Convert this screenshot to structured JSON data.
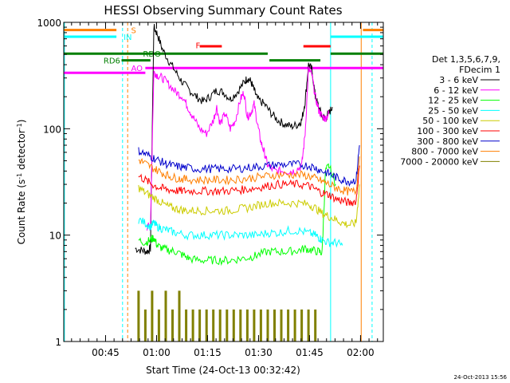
{
  "chart_data": {
    "type": "line",
    "title": "HESSI Observing Summary Count Rates",
    "xlabel": "Start Time (24-Oct-13 00:32:42)",
    "ylabel_main": "Count Rate (s",
    "ylabel_sup": "-1",
    "ylabel_mid": " detector",
    "ylabel_end": ")",
    "yscale": "log",
    "ylim": [
      1,
      1000
    ],
    "xlim": [
      0.0,
      94.0
    ],
    "yticks": [
      {
        "value": 1,
        "label": "1"
      },
      {
        "value": 10,
        "label": "10"
      },
      {
        "value": 100,
        "label": "100"
      },
      {
        "value": 1000,
        "label": "1000"
      }
    ],
    "xticks": [
      {
        "value": 12.3,
        "label": "00:45"
      },
      {
        "value": 27.3,
        "label": "01:00"
      },
      {
        "value": 42.3,
        "label": "01:15"
      },
      {
        "value": 57.3,
        "label": "01:30"
      },
      {
        "value": 72.3,
        "label": "01:45"
      },
      {
        "value": 87.3,
        "label": "02:00"
      }
    ],
    "legend_header": [
      "Det 1,3,5,6,7,9,",
      "FDecim 1"
    ],
    "legend_placement": "right",
    "timestamp": "24-Oct-2013 15:56",
    "flags": [
      {
        "label": "S",
        "color": "#ff7f00",
        "y": 0.976
      },
      {
        "label": "IN",
        "color": "#00ffff",
        "y": 0.955
      },
      {
        "label": "RDO",
        "color": "#007f00",
        "y": 0.902
      },
      {
        "label": "RD6",
        "color": "#007f00",
        "y": 0.881
      },
      {
        "label": "AO",
        "color": "#ff00ff",
        "y": 0.857
      },
      {
        "label": "F",
        "color": "#ff0000",
        "y": 0.929
      }
    ],
    "series": [
      {
        "name": "3 - 6 keV",
        "color": "#000000",
        "x": [
          21,
          23,
          24.5,
          25.5,
          26.5,
          27.5,
          29,
          31,
          33,
          35,
          37,
          39,
          41,
          43,
          45,
          47,
          49,
          51,
          53,
          54,
          55,
          56,
          57,
          59,
          61,
          63,
          65,
          67,
          69,
          70,
          71,
          72,
          73,
          74,
          75,
          76,
          77,
          78,
          79
        ],
        "y": [
          7.5,
          7.2,
          7.0,
          7.5,
          900,
          780,
          560,
          430,
          340,
          270,
          230,
          200,
          180,
          200,
          230,
          220,
          190,
          220,
          270,
          300,
          280,
          230,
          190,
          170,
          140,
          120,
          110,
          105,
          110,
          120,
          180,
          400,
          360,
          200,
          160,
          130,
          125,
          140,
          160
        ]
      },
      {
        "name": "6 - 12 keV",
        "color": "#ff00ff",
        "x": [
          24.5,
          25.5,
          26.5,
          27.5,
          29,
          31,
          33,
          35,
          36.5,
          38,
          40,
          42,
          44,
          45,
          46,
          47.5,
          49,
          50.5,
          52,
          53,
          54,
          55,
          56,
          57,
          58,
          59,
          60,
          62,
          64,
          66,
          68,
          70,
          71,
          72,
          73,
          74,
          75,
          76,
          77,
          78
        ],
        "y": [
          12,
          12,
          340,
          320,
          300,
          260,
          220,
          200,
          160,
          130,
          100,
          90,
          120,
          160,
          110,
          140,
          100,
          120,
          190,
          220,
          130,
          140,
          170,
          110,
          75,
          60,
          45,
          40,
          40,
          40,
          40,
          45,
          90,
          360,
          320,
          200,
          150,
          130,
          125,
          140
        ]
      },
      {
        "name": "12 - 25 keV",
        "color": "#00ff00",
        "x": [
          22,
          24,
          25.5,
          26.5,
          27.5,
          29,
          31,
          33,
          35,
          37,
          40,
          43,
          46,
          49,
          52,
          55,
          57,
          60,
          63,
          66,
          69,
          71,
          73,
          75,
          76,
          77,
          78,
          80
        ],
        "y": [
          9,
          8.5,
          9,
          9.5,
          8,
          7.5,
          7.2,
          7.0,
          6.5,
          6.0,
          5.8,
          5.8,
          5.8,
          5.8,
          6.0,
          6.2,
          6.5,
          7.0,
          7.0,
          7.0,
          7.2,
          7.5,
          7.2,
          7.0,
          6.8,
          40,
          45,
          30
        ]
      },
      {
        "name": "25 - 50 keV",
        "color": "#00ffff",
        "x": [
          22,
          24,
          25.5,
          26.5,
          27.5,
          29,
          31,
          33,
          36,
          39,
          42,
          45,
          48,
          51,
          54,
          57,
          60,
          63,
          66,
          69,
          72,
          74,
          75,
          76,
          78,
          80,
          82
        ],
        "y": [
          14,
          13,
          12,
          13,
          12,
          11.5,
          11,
          10.5,
          10,
          10,
          10,
          10,
          10,
          10,
          10,
          10,
          10.5,
          10.5,
          11,
          11,
          10.5,
          10,
          9.5,
          9,
          8.5,
          8.5,
          8
        ]
      },
      {
        "name": "50 - 100 keV",
        "color": "#cccc00",
        "x": [
          22,
          24,
          26,
          28,
          30,
          32,
          34,
          36,
          39,
          42,
          45,
          48,
          51,
          54,
          57,
          60,
          63,
          66,
          69,
          72,
          74,
          76,
          78,
          80,
          82,
          84,
          86,
          87
        ],
        "y": [
          28,
          25,
          23,
          21,
          19,
          18,
          17.5,
          17,
          17,
          17,
          17,
          17,
          17.5,
          18,
          19,
          20,
          20,
          20,
          20,
          19.5,
          18,
          16,
          15,
          14,
          13,
          12.5,
          13,
          30
        ]
      },
      {
        "name": "100 - 300 keV",
        "color": "#ff0000",
        "x": [
          22,
          24,
          26,
          28,
          30,
          32,
          34,
          36,
          39,
          42,
          45,
          48,
          51,
          54,
          57,
          60,
          63,
          66,
          69,
          72,
          74,
          76,
          78,
          80,
          82,
          84,
          86,
          87
        ],
        "y": [
          36,
          33,
          30,
          28,
          27,
          26.5,
          26,
          26,
          26,
          26,
          26,
          26,
          26.5,
          27,
          28,
          29,
          30,
          30,
          30,
          29,
          27,
          25,
          24,
          22,
          21,
          20,
          21,
          45
        ]
      },
      {
        "name": "300 - 800 keV",
        "color": "#0000cc",
        "x": [
          22,
          24,
          26,
          28,
          30,
          32,
          34,
          36,
          39,
          42,
          45,
          48,
          51,
          54,
          57,
          60,
          63,
          66,
          69,
          72,
          74,
          76,
          78,
          80,
          82,
          84,
          86,
          87
        ],
        "y": [
          62,
          58,
          54,
          50,
          47,
          45,
          44,
          43,
          42,
          42,
          42,
          42,
          42,
          43,
          44,
          45,
          46,
          46,
          46,
          45,
          43,
          40,
          38,
          35,
          33,
          32,
          33,
          70
        ]
      },
      {
        "name": "800 - 7000 keV",
        "color": "#ff7f00",
        "x": [
          22,
          24,
          26,
          28,
          30,
          32,
          34,
          36,
          39,
          42,
          45,
          48,
          51,
          54,
          57,
          60,
          63,
          66,
          69,
          72,
          74,
          76,
          78,
          80,
          82,
          84,
          86,
          87
        ],
        "y": [
          51,
          47,
          43,
          40,
          37,
          35,
          34,
          33.5,
          33,
          33,
          33,
          33,
          33.5,
          34,
          35,
          36,
          37,
          37,
          37,
          36,
          34,
          32,
          30,
          28,
          26.5,
          25.5,
          26,
          55
        ]
      },
      {
        "name": "7000 - 20000 keV",
        "color": "#808000",
        "x": [
          22,
          23,
          24,
          25,
          26,
          27,
          28,
          29,
          30,
          31,
          32,
          33,
          34,
          35,
          36,
          37,
          38,
          39,
          40,
          41,
          42,
          43,
          44,
          45,
          46,
          47,
          48,
          49,
          50,
          51,
          52,
          53,
          54,
          55,
          56,
          57,
          58,
          59,
          60,
          61,
          62,
          63,
          64,
          65,
          66,
          67,
          68,
          69,
          70,
          71,
          72,
          73,
          74,
          75
        ],
        "y": [
          3,
          1,
          2,
          1,
          3,
          1,
          2,
          1,
          3,
          1,
          2,
          1,
          3,
          1,
          2,
          1,
          2,
          1,
          2,
          1,
          2,
          1,
          2,
          1,
          2,
          1,
          2,
          1,
          2,
          1,
          2,
          1,
          2,
          1,
          2,
          1,
          2,
          1,
          2,
          1,
          2,
          1,
          2,
          1,
          2,
          1,
          2,
          1,
          2,
          1,
          2,
          1,
          2,
          1
        ]
      }
    ]
  }
}
